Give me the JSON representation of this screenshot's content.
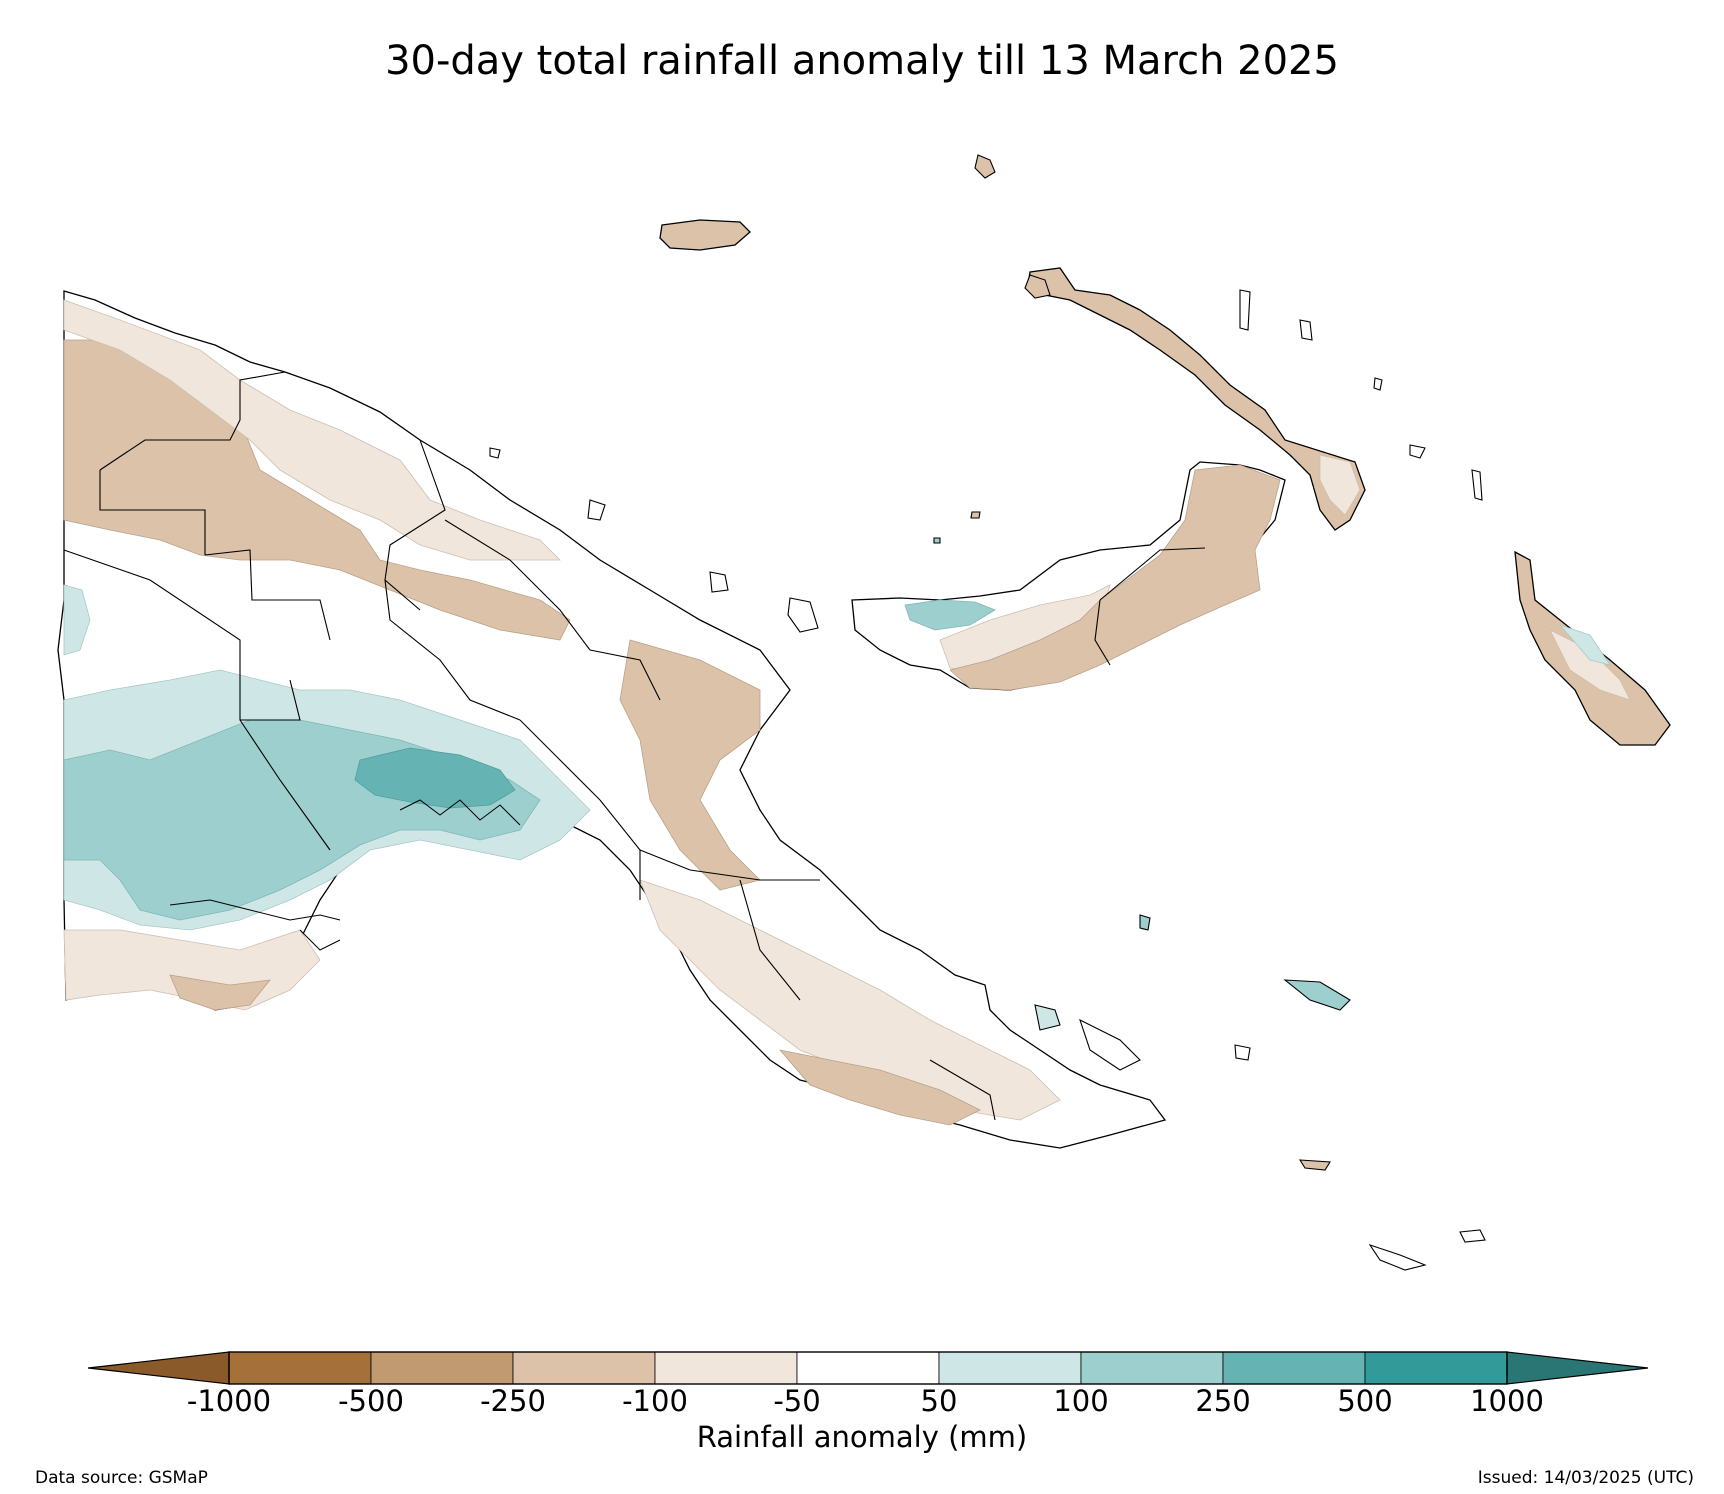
{
  "title": "30-day total rainfall anomaly till 13 March 2025",
  "colorbar": {
    "title": "Rainfall anomaly (mm)",
    "tick_labels": [
      "-1000",
      "-500",
      "-250",
      "-100",
      "-50",
      "50",
      "100",
      "250",
      "500",
      "1000"
    ],
    "band_colors": [
      "#a6703a",
      "#c29a72",
      "#dbc2a8",
      "#f1e6dc",
      "#ffffff",
      "#cfe6e6",
      "#9dcfcf",
      "#66b3b3",
      "#329b99"
    ],
    "extend_low_color": "#8b5a2b",
    "extend_high_color": "#2a7674"
  },
  "legend_levels": {
    "dry_strong": "#dbc2a8",
    "dry_light": "#f1e6dc",
    "wet_light": "#cfe6e6",
    "wet_mid": "#9dcfcf",
    "wet_strong": "#66b3b3"
  },
  "footer": {
    "source": "Data source: GSMaP",
    "issued": "Issued: 14/03/2025 (UTC)"
  }
}
